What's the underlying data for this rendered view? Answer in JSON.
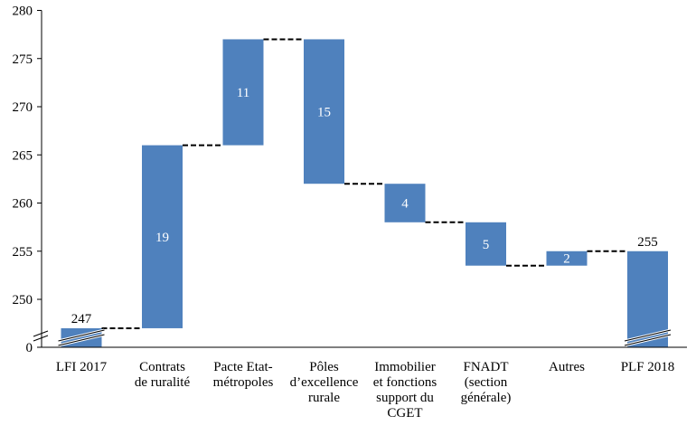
{
  "chart_data": {
    "type": "waterfall",
    "title": "",
    "xlabel": "",
    "ylabel": "",
    "y_axis": {
      "broken": true,
      "ticks": [
        {
          "value": 0,
          "label": "0"
        },
        {
          "value": 250,
          "label": "250"
        },
        {
          "value": 255,
          "label": "255"
        },
        {
          "value": 260,
          "label": "260"
        },
        {
          "value": 265,
          "label": "265"
        },
        {
          "value": 270,
          "label": "270"
        },
        {
          "value": 275,
          "label": "275"
        },
        {
          "value": 280,
          "label": "280"
        }
      ],
      "ylim": [
        246,
        280
      ]
    },
    "grid": false,
    "legend": "none",
    "bar_color": "#4f81bd",
    "connector_style": "dashed",
    "categories": [
      [
        "LFI 2017"
      ],
      [
        "Contrats",
        "de ruralité"
      ],
      [
        "Pacte Etat-",
        "métropoles"
      ],
      [
        "Pôles",
        "d’excellence",
        "rurale"
      ],
      [
        "Immobilier",
        "et fonctions",
        "support du",
        "CGET"
      ],
      [
        "FNADT",
        "(section",
        "générale)"
      ],
      [
        "Autres"
      ],
      [
        "PLF 2018"
      ]
    ],
    "bars": [
      {
        "kind": "total",
        "start": 0,
        "end": 247,
        "label": "247",
        "label_position": "above"
      },
      {
        "kind": "delta",
        "start": 247,
        "end": 266,
        "label": "19",
        "label_position": "inside"
      },
      {
        "kind": "delta",
        "start": 266,
        "end": 277,
        "label": "11",
        "label_position": "inside"
      },
      {
        "kind": "delta",
        "start": 277,
        "end": 262,
        "label": "15",
        "label_position": "inside"
      },
      {
        "kind": "delta",
        "start": 262,
        "end": 258,
        "label": "4",
        "label_position": "inside"
      },
      {
        "kind": "delta",
        "start": 258,
        "end": 253.5,
        "label": "5",
        "label_position": "inside"
      },
      {
        "kind": "delta",
        "start": 253.5,
        "end": 255,
        "label": "2",
        "label_position": "inside"
      },
      {
        "kind": "total",
        "start": 0,
        "end": 255,
        "label": "255",
        "label_position": "above"
      }
    ]
  }
}
